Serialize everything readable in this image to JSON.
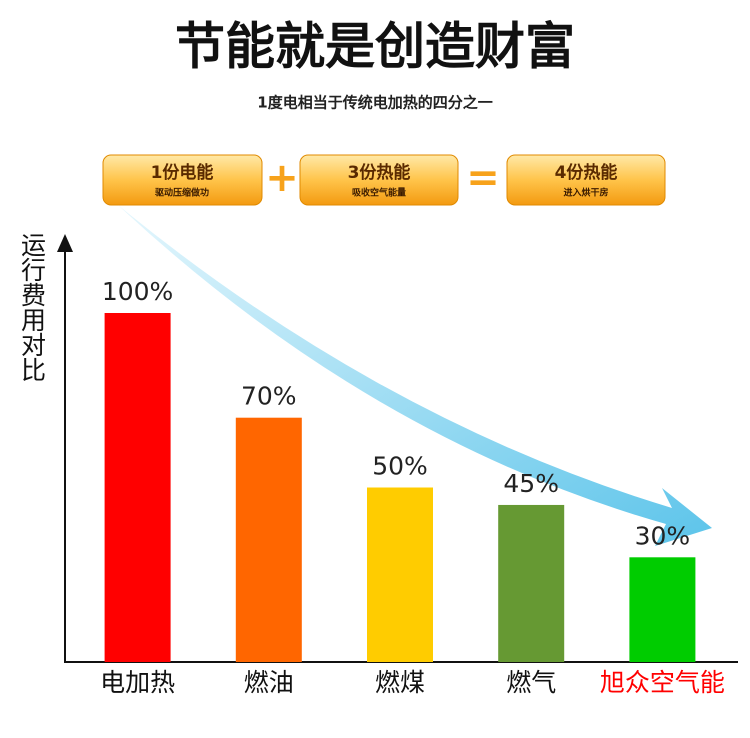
{
  "chart_data": {
    "type": "bar",
    "title": "节能就是创造财富",
    "subtitle": "1度电相当于传统电加热的四分之一",
    "formula": [
      {
        "title": "1份电能",
        "sub": "驱动压缩做功"
      },
      {
        "op": "+"
      },
      {
        "title": "3份热能",
        "sub": "吸收空气能量"
      },
      {
        "op": "="
      },
      {
        "title": "4份热能",
        "sub": "进入烘干房"
      }
    ],
    "y_label": "运行费用对比",
    "categories": [
      "电加热",
      "燃油",
      "燃煤",
      "燃气",
      "旭众空气能"
    ],
    "values": [
      100,
      70,
      50,
      45,
      30
    ],
    "value_labels": [
      "100%",
      "70%",
      "50%",
      "45%",
      "30%"
    ],
    "colors": [
      "#ff0000",
      "#ff6600",
      "#ffcc00",
      "#669933",
      "#00cc00"
    ],
    "label_colors": [
      "#111111",
      "#111111",
      "#111111",
      "#111111",
      "#ff0000"
    ]
  }
}
